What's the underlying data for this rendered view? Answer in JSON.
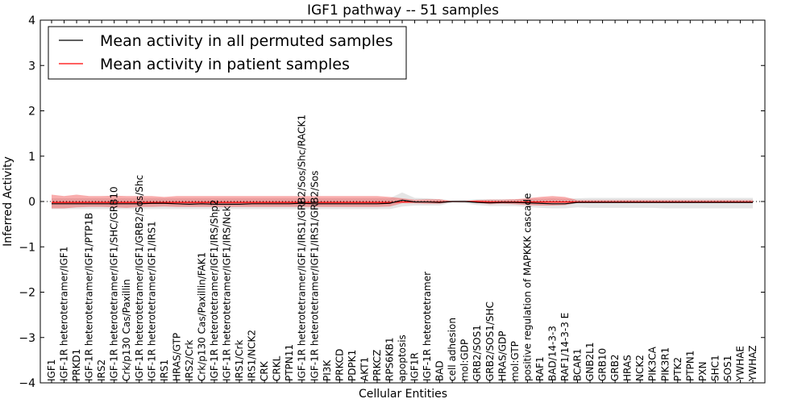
{
  "chart_data": {
    "type": "line",
    "title": "IGF1 pathway -- 51 samples",
    "xlabel": "Cellular Entities",
    "ylabel": "Inferred Activity",
    "ylim": [
      -4,
      4
    ],
    "yticks": [
      "−4",
      "−3",
      "−2",
      "−1",
      "0",
      "1",
      "2",
      "3",
      "4"
    ],
    "legend": {
      "placement": "top-left",
      "entries": [
        {
          "label": "Mean activity in all permuted samples",
          "color": "#000000"
        },
        {
          "label": "Mean activity in patient samples",
          "color": "#ff0000"
        }
      ]
    },
    "categories": [
      "IGF1",
      "IGF-1R heterotetramer/IGF1",
      "PRKD1",
      "IGF-1R heterotetramer/IGF1/PTP1B",
      "IRS2",
      "IGF-1R heterotetramer/IGF1/SHC/GRB10",
      "Crk/p130 Cas/Paxillin",
      "IGF-1R heterotetramer/IGF1/GRB2/Sos/Shc",
      "IGF-1R heterotetramer/IGF1/IRS1",
      "IRS1",
      "HRAS/GTP",
      "IRS2/Crk",
      "Crk/p130 Cas/Paxillin/FAK1",
      "IGF-1R heterotetramer/IGF1/IRS/Shp2",
      "IGF-1R heterotetramer/IGF1/IRS/Nck",
      "IRS1/Crk",
      "IRS1/NCK2",
      "CRK",
      "CRKL",
      "PTPN11",
      "IGF-1R heterotetramer/IGF1/IRS1/GRB2/Sos/Shc/RACK1",
      "IGF-1R heterotetramer/IGF1/IRS1/GRB2/Sos",
      "PI3K",
      "PRKCD",
      "PDPK1",
      "AKT1",
      "PRKCZ",
      "RPS6KB1",
      "apoptosis",
      "IGF1R",
      "IGF-1R heterotetramer",
      "BAD",
      "cell adhesion",
      "mol:GDP",
      "GRB2/SOS1",
      "GRB2/SOS1/SHC",
      "HRAS/GDP",
      "mol:GTP",
      "positive regulation of MAPKKK cascade",
      "RAF1",
      "BAD/14-3-3",
      "RAF1/14-3-3 E",
      "BCAR1",
      "GNB2L1",
      "GRB10",
      "GRB2",
      "HRAS",
      "NCK2",
      "PIK3CA",
      "PIK3R1",
      "PTK2",
      "PTPN1",
      "PXN",
      "SHC1",
      "SOS1",
      "YWHAE",
      "YWHAZ"
    ],
    "series": [
      {
        "name": "Mean activity in all permuted samples",
        "color": "#000000",
        "values": [
          -0.05,
          -0.05,
          -0.05,
          -0.05,
          -0.05,
          -0.05,
          -0.05,
          -0.05,
          -0.04,
          -0.04,
          -0.05,
          -0.06,
          -0.05,
          -0.06,
          -0.06,
          -0.06,
          -0.05,
          -0.05,
          -0.05,
          -0.05,
          -0.04,
          -0.05,
          -0.05,
          -0.05,
          -0.05,
          -0.05,
          -0.05,
          -0.04,
          0.03,
          -0.01,
          -0.01,
          -0.02,
          0,
          0,
          -0.02,
          -0.03,
          -0.02,
          -0.02,
          -0.03,
          -0.04,
          -0.05,
          -0.05,
          -0.02,
          -0.02,
          -0.02,
          -0.02,
          -0.02,
          -0.02,
          -0.02,
          -0.02,
          -0.02,
          -0.02,
          -0.02,
          -0.02,
          -0.02,
          -0.02,
          -0.02
        ],
        "lower": [
          -0.17,
          -0.17,
          -0.17,
          -0.17,
          -0.17,
          -0.17,
          -0.17,
          -0.17,
          -0.17,
          -0.17,
          -0.17,
          -0.17,
          -0.17,
          -0.17,
          -0.17,
          -0.17,
          -0.17,
          -0.17,
          -0.17,
          -0.17,
          -0.17,
          -0.17,
          -0.17,
          -0.17,
          -0.17,
          -0.17,
          -0.17,
          -0.17,
          -0.11,
          -0.09,
          -0.09,
          -0.09,
          -0.02,
          -0.04,
          -0.08,
          -0.1,
          -0.1,
          -0.1,
          -0.12,
          -0.14,
          -0.15,
          -0.15,
          -0.13,
          -0.14,
          -0.14,
          -0.14,
          -0.14,
          -0.14,
          -0.14,
          -0.15,
          -0.15,
          -0.15,
          -0.15,
          -0.15,
          -0.15,
          -0.15,
          -0.15
        ],
        "upper": [
          0.07,
          0.07,
          0.07,
          0.07,
          0.07,
          0.07,
          0.07,
          0.07,
          0.07,
          0.07,
          0.07,
          0.07,
          0.07,
          0.07,
          0.07,
          0.07,
          0.07,
          0.07,
          0.07,
          0.07,
          0.07,
          0.07,
          0.07,
          0.07,
          0.07,
          0.07,
          0.07,
          0.07,
          0.2,
          0.08,
          0.07,
          0.05,
          0.02,
          0.03,
          0.05,
          0.05,
          0.05,
          0.05,
          0.06,
          0.06,
          0.07,
          0.06,
          0.07,
          0.08,
          0.08,
          0.08,
          0.08,
          0.08,
          0.08,
          0.08,
          0.08,
          0.08,
          0.08,
          0.08,
          0.08,
          0.08,
          0.08
        ]
      },
      {
        "name": "Mean activity in patient samples",
        "color": "#ff0000",
        "values": [
          -0.02,
          -0.02,
          -0.02,
          -0.02,
          -0.02,
          -0.02,
          -0.02,
          -0.02,
          -0.02,
          -0.02,
          -0.02,
          -0.02,
          -0.02,
          -0.02,
          -0.02,
          -0.02,
          -0.02,
          -0.02,
          -0.02,
          -0.02,
          -0.02,
          -0.02,
          -0.02,
          -0.02,
          -0.02,
          -0.02,
          -0.02,
          -0.02,
          -0.01,
          -0.01,
          -0.01,
          -0.01,
          0,
          0,
          0,
          -0.01,
          -0.01,
          -0.01,
          -0.01,
          -0.01,
          -0.01,
          -0.01,
          -0.01,
          -0.01,
          -0.01,
          -0.01,
          -0.01,
          -0.01,
          -0.01,
          -0.01,
          -0.01,
          -0.01,
          -0.01,
          -0.01,
          -0.01,
          -0.01,
          -0.01
        ],
        "lower": [
          -0.15,
          -0.15,
          -0.13,
          -0.12,
          -0.12,
          -0.13,
          -0.14,
          -0.12,
          -0.12,
          -0.11,
          -0.12,
          -0.12,
          -0.12,
          -0.12,
          -0.12,
          -0.12,
          -0.12,
          -0.12,
          -0.12,
          -0.12,
          -0.12,
          -0.12,
          -0.12,
          -0.12,
          -0.12,
          -0.12,
          -0.12,
          -0.11,
          -0.04,
          -0.04,
          -0.05,
          -0.05,
          -0.01,
          -0.01,
          -0.03,
          -0.06,
          -0.05,
          -0.06,
          -0.08,
          -0.09,
          -0.09,
          -0.08,
          -0.03,
          -0.03,
          -0.03,
          -0.03,
          -0.03,
          -0.03,
          -0.03,
          -0.03,
          -0.03,
          -0.03,
          -0.03,
          -0.03,
          -0.03,
          -0.03,
          -0.03
        ],
        "upper": [
          0.15,
          0.12,
          0.15,
          0.12,
          0.12,
          0.13,
          0.12,
          0.12,
          0.12,
          0.1,
          0.12,
          0.12,
          0.12,
          0.12,
          0.12,
          0.12,
          0.12,
          0.12,
          0.12,
          0.12,
          0.12,
          0.12,
          0.12,
          0.12,
          0.12,
          0.12,
          0.12,
          0.1,
          0.07,
          0.04,
          0.05,
          0.05,
          0.01,
          0.01,
          0.03,
          0.04,
          0.04,
          0.05,
          0.07,
          0.1,
          0.12,
          0.1,
          0.03,
          0.03,
          0.03,
          0.03,
          0.03,
          0.03,
          0.03,
          0.03,
          0.03,
          0.03,
          0.03,
          0.03,
          0.03,
          0.03,
          0.03
        ]
      }
    ],
    "reference_line": {
      "y": 0,
      "style": "dotted"
    }
  }
}
